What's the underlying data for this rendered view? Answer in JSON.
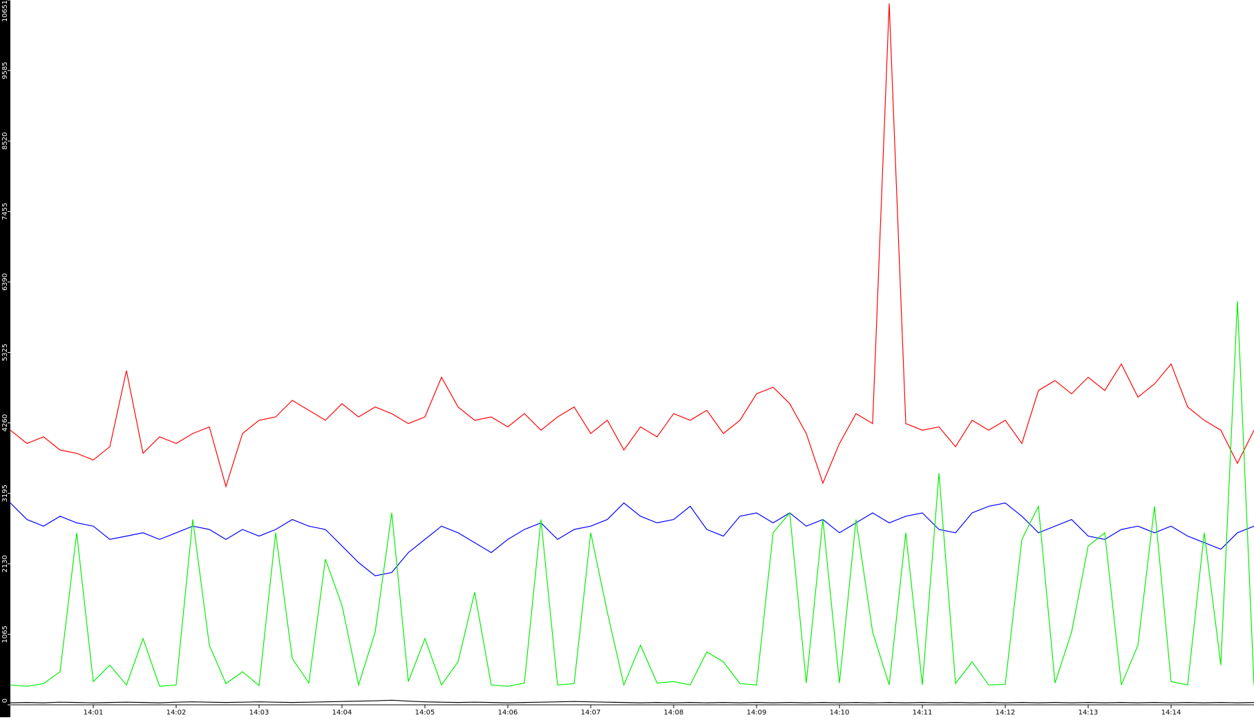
{
  "chart_data": {
    "type": "line",
    "x": [
      0,
      0.2,
      0.4,
      0.6,
      0.8,
      1,
      1.2,
      1.4,
      1.6,
      1.8,
      2,
      2.2,
      2.4,
      2.6,
      2.8,
      3,
      3.2,
      3.4,
      3.6,
      3.8,
      4,
      4.2,
      4.4,
      4.6,
      4.8,
      5,
      5.2,
      5.4,
      5.6,
      5.8,
      6,
      6.2,
      6.4,
      6.6,
      6.8,
      7,
      7.2,
      7.4,
      7.6,
      7.8,
      8,
      8.2,
      8.4,
      8.6,
      8.8,
      9,
      9.2,
      9.4,
      9.6,
      9.8,
      10,
      10.2,
      10.4,
      10.6,
      10.8,
      11,
      11.2,
      11.4,
      11.6,
      11.8,
      12,
      12.2,
      12.4,
      12.6,
      12.8,
      13,
      13.2,
      13.4,
      13.6,
      13.8,
      14,
      14.2,
      14.4,
      14.6,
      14.8,
      15
    ],
    "series": [
      {
        "color": "#ff0000",
        "values": [
          4150,
          3950,
          4050,
          3850,
          3800,
          3700,
          3900,
          5050,
          3800,
          4050,
          3950,
          4100,
          4200,
          3300,
          4100,
          4300,
          4350,
          4600,
          4450,
          4300,
          4550,
          4350,
          4500,
          4400,
          4250,
          4350,
          4950,
          4500,
          4300,
          4350,
          4200,
          4400,
          4150,
          4350,
          4500,
          4100,
          4300,
          3850,
          4200,
          4050,
          4400,
          4300,
          4450,
          4100,
          4300,
          4700,
          4800,
          4550,
          4100,
          3350,
          3950,
          4400,
          4250,
          10600,
          4250,
          4150,
          4200,
          3900,
          4300,
          4150,
          4300,
          3950,
          4750,
          4900,
          4700,
          4950,
          4750,
          5150,
          4650,
          4850,
          5150,
          4500,
          4300,
          4150,
          3650,
          4150
        ]
      },
      {
        "color": "#0000ff",
        "values": [
          3050,
          2800,
          2700,
          2850,
          2750,
          2700,
          2500,
          2550,
          2600,
          2500,
          2600,
          2700,
          2650,
          2500,
          2650,
          2550,
          2650,
          2800,
          2700,
          2650,
          2400,
          2150,
          1950,
          2000,
          2300,
          2500,
          2700,
          2600,
          2450,
          2300,
          2500,
          2650,
          2750,
          2500,
          2650,
          2700,
          2800,
          3050,
          2850,
          2750,
          2800,
          3000,
          2650,
          2550,
          2850,
          2900,
          2750,
          2900,
          2700,
          2800,
          2600,
          2750,
          2900,
          2750,
          2850,
          2900,
          2650,
          2600,
          2900,
          3000,
          3050,
          2850,
          2600,
          2700,
          2800,
          2550,
          2500,
          2650,
          2700,
          2600,
          2700,
          2550,
          2450,
          2350,
          2600,
          2700
        ]
      },
      {
        "color": "#00ee00",
        "values": [
          300,
          280,
          320,
          500,
          2600,
          350,
          600,
          300,
          1000,
          280,
          300,
          2800,
          900,
          320,
          500,
          290,
          2600,
          700,
          330,
          2200,
          1500,
          300,
          1100,
          2900,
          350,
          1000,
          300,
          650,
          1700,
          300,
          280,
          330,
          2800,
          300,
          320,
          2600,
          1400,
          300,
          900,
          330,
          350,
          300,
          800,
          650,
          320,
          300,
          2600,
          2900,
          330,
          2800,
          330,
          2800,
          1100,
          300,
          2600,
          300,
          3500,
          320,
          650,
          300,
          310,
          2500,
          3000,
          330,
          1100,
          2400,
          2600,
          300,
          900,
          3000,
          350,
          300,
          2600,
          600,
          6100,
          300
        ]
      },
      {
        "color": "#000000",
        "values": [
          30,
          35,
          30,
          40,
          35,
          30,
          35,
          40,
          35,
          30,
          40,
          45,
          40,
          35,
          40,
          45,
          40,
          35,
          40,
          45,
          50,
          55,
          60,
          70,
          55,
          45,
          40,
          35,
          40,
          35,
          30,
          35,
          40,
          45,
          50,
          45,
          40,
          35,
          30,
          35,
          30,
          35,
          30,
          35,
          30,
          35,
          30,
          35,
          30,
          35,
          30,
          35,
          30,
          35,
          30,
          35,
          30,
          35,
          30,
          35,
          30,
          35,
          30,
          35,
          30,
          35,
          30,
          35,
          30,
          35,
          30,
          35,
          30,
          35,
          30,
          35
        ]
      }
    ],
    "xlim": [
      0,
      15
    ],
    "xticks": [
      {
        "value": 1,
        "label": "14:01"
      },
      {
        "value": 2,
        "label": "14:02"
      },
      {
        "value": 3,
        "label": "14:03"
      },
      {
        "value": 4,
        "label": "14:04"
      },
      {
        "value": 5,
        "label": "14:05"
      },
      {
        "value": 6,
        "label": "14:06"
      },
      {
        "value": 7,
        "label": "14:07"
      },
      {
        "value": 8,
        "label": "14:08"
      },
      {
        "value": 9,
        "label": "14:09"
      },
      {
        "value": 10,
        "label": "14:10"
      },
      {
        "value": 11,
        "label": "14:11"
      },
      {
        "value": 12,
        "label": "14:12"
      },
      {
        "value": 13,
        "label": "14:13"
      },
      {
        "value": 14,
        "label": "14:14"
      }
    ],
    "ylim": [
      0,
      10651
    ],
    "yticks": [
      0,
      1065,
      2130,
      3195,
      4260,
      5325,
      6390,
      7455,
      8520,
      9585,
      10651
    ]
  }
}
